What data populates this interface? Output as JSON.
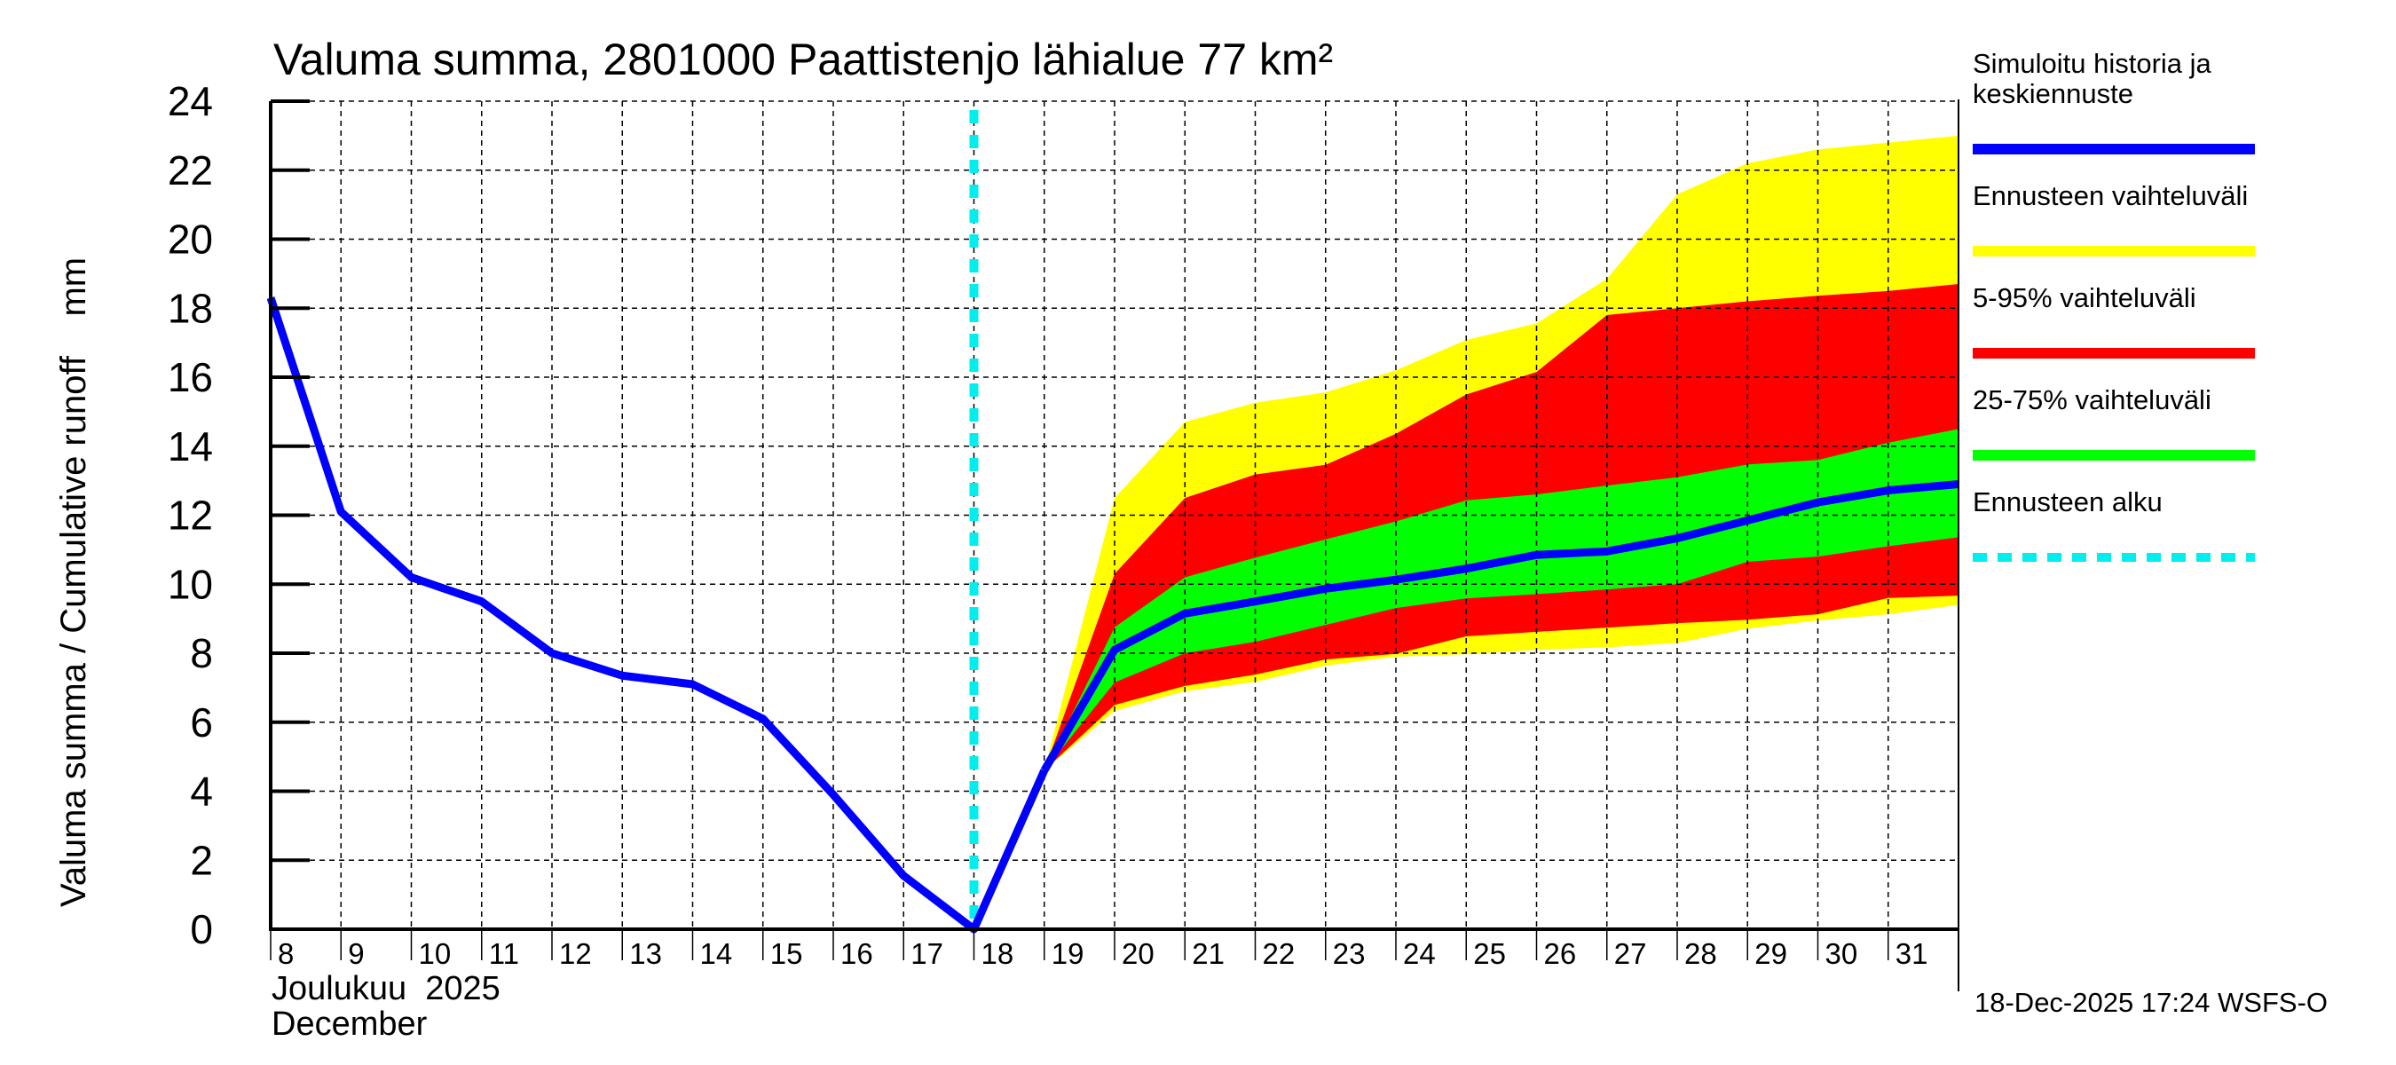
{
  "chart_data": {
    "type": "area",
    "title": "Valuma summa, 2801000 Paattistenjo lähialue 77 km²",
    "ylabel": "Valuma summa / Cumulative runoff    mm",
    "xlabel_line1": "Joulukuu  2025",
    "xlabel_line2": "December",
    "ylim": [
      0,
      24
    ],
    "yticks": [
      0,
      2,
      4,
      6,
      8,
      10,
      12,
      14,
      16,
      18,
      20,
      22,
      24
    ],
    "xlim_days": [
      8,
      32
    ],
    "xtick_labels": [
      "8",
      "9",
      "10",
      "11",
      "12",
      "13",
      "14",
      "15",
      "16",
      "17",
      "18",
      "19",
      "20",
      "21",
      "22",
      "23",
      "24",
      "25",
      "26",
      "27",
      "28",
      "29",
      "30",
      "31"
    ],
    "grid": true,
    "legend_position": "right",
    "forecast_start_day": 18,
    "history": {
      "name": "Simuloitu historia ja keskiennuste",
      "color": "#0000ff",
      "x": [
        8,
        9,
        10,
        11,
        12,
        13,
        14,
        15,
        16,
        17,
        18,
        19
      ],
      "y": [
        18.3,
        12.1,
        10.2,
        9.5,
        8.0,
        7.35,
        7.1,
        6.1,
        3.9,
        1.55,
        0.0,
        4.6
      ]
    },
    "forecast_x": [
      19,
      20,
      21,
      22,
      23,
      24,
      25,
      26,
      27,
      28,
      29,
      30,
      31,
      32
    ],
    "median": [
      4.6,
      8.1,
      9.15,
      9.5,
      9.87,
      10.13,
      10.45,
      10.85,
      10.95,
      11.33,
      11.85,
      12.37,
      12.72,
      12.9
    ],
    "bands": [
      {
        "name": "Ennusteen vaihteluväli",
        "color": "#ffff00",
        "upper": [
          4.6,
          12.5,
          14.7,
          15.26,
          15.56,
          16.2,
          17.08,
          17.56,
          18.85,
          21.3,
          22.2,
          22.6,
          22.8,
          23.0
        ],
        "lower": [
          4.6,
          6.33,
          6.9,
          7.17,
          7.64,
          7.9,
          7.97,
          8.1,
          8.17,
          8.3,
          8.71,
          8.95,
          9.13,
          9.4
        ]
      },
      {
        "name": "5-95% vaihteluväli",
        "color": "#ff0000",
        "upper": [
          4.6,
          10.3,
          12.5,
          13.18,
          13.46,
          14.36,
          15.5,
          16.15,
          17.8,
          18.0,
          18.2,
          18.36,
          18.5,
          18.7
        ],
        "lower": [
          4.6,
          6.5,
          7.05,
          7.38,
          7.82,
          7.98,
          8.49,
          8.62,
          8.74,
          8.87,
          8.97,
          9.13,
          9.6,
          9.67
        ]
      },
      {
        "name": "25-75% vaihteluväli",
        "color": "#00ff00",
        "upper": [
          4.6,
          8.75,
          10.2,
          10.77,
          11.3,
          11.82,
          12.43,
          12.6,
          12.86,
          13.1,
          13.47,
          13.6,
          14.1,
          14.5
        ],
        "lower": [
          4.6,
          7.15,
          8.0,
          8.33,
          8.82,
          9.31,
          9.59,
          9.71,
          9.85,
          10.0,
          10.65,
          10.8,
          11.1,
          11.36
        ]
      }
    ],
    "legend": [
      {
        "label_lines": [
          "Simuloitu historia ja",
          "keskiennuste"
        ],
        "color": "#0000ff",
        "style": "solid"
      },
      {
        "label_lines": [
          "Ennusteen vaihteluväli"
        ],
        "color": "#ffff00",
        "style": "solid"
      },
      {
        "label_lines": [
          "5-95% vaihteluväli"
        ],
        "color": "#ff0000",
        "style": "solid"
      },
      {
        "label_lines": [
          "25-75% vaihteluväli"
        ],
        "color": "#00ff00",
        "style": "solid"
      },
      {
        "label_lines": [
          "Ennusteen alku"
        ],
        "color": "#00eeee",
        "style": "dashed"
      }
    ],
    "footer": "18-Dec-2025 17:24 WSFS-O"
  }
}
